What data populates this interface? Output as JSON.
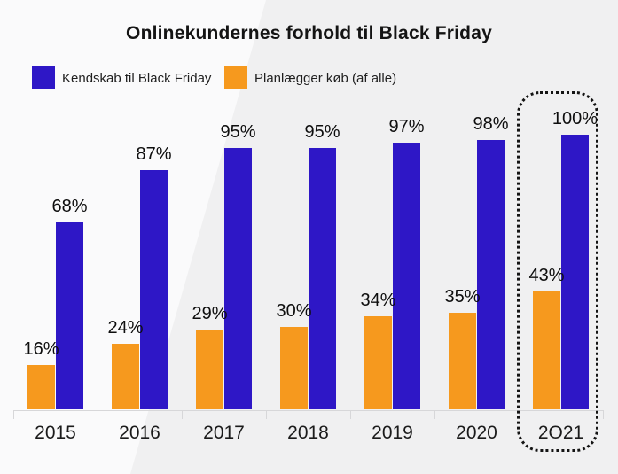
{
  "chart_data": {
    "type": "bar",
    "title": "Onlinekundernes forhold til Black Friday",
    "categories": [
      "2015",
      "2016",
      "2017",
      "2018",
      "2019",
      "2020",
      "2O21"
    ],
    "series": [
      {
        "name": "Kendskab til Black Friday",
        "color": "#2E17C6",
        "values": [
          68,
          87,
          95,
          95,
          97,
          98,
          100
        ]
      },
      {
        "name": "Planlægger køb (af alle)",
        "color": "#F6991E",
        "values": [
          16,
          24,
          29,
          30,
          34,
          35,
          43
        ]
      }
    ],
    "value_suffix": "%",
    "ylim": [
      0,
      100
    ],
    "grid": false,
    "y_axis_visible": false,
    "legend_position": "top-left",
    "bar_order_in_group": [
      "Planlægger køb (af alle)",
      "Kendskab til Black Friday"
    ],
    "data_labels": "above-each-bar",
    "highlighted_category": "2O21",
    "highlight_style": "black-dotted-rounded-outline"
  },
  "colors": {
    "background_left": "#FAFAFB",
    "background_right": "#F0F0F1",
    "axis": "#D7D7D9",
    "text": "#141414"
  }
}
